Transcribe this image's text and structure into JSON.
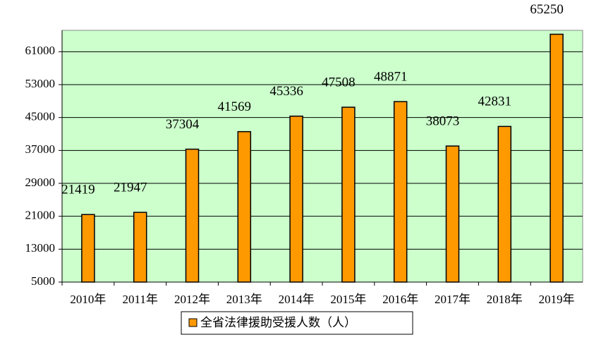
{
  "chart_data": {
    "type": "bar",
    "categories": [
      "2010年",
      "2011年",
      "2012年",
      "2013年",
      "2014年",
      "2015年",
      "2016年",
      "2017年",
      "2018年",
      "2019年"
    ],
    "series": [
      {
        "name": "全省法律援助受援人数（人）",
        "color": "#ff9900",
        "values": [
          21419,
          21947,
          37304,
          41569,
          45336,
          47508,
          48871,
          38073,
          42831,
          65250
        ]
      }
    ],
    "ylim": [
      5000,
      66200
    ],
    "yticks": [
      5000,
      13000,
      21000,
      29000,
      37000,
      45000,
      53000,
      61000
    ],
    "grid": true,
    "background": "#ccffcc",
    "legend": "bottom"
  }
}
